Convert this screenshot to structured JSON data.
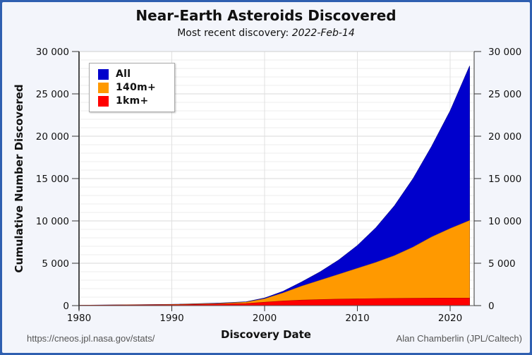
{
  "chart_data": {
    "type": "area",
    "stacked": false,
    "title": "Near-Earth Asteroids Discovered",
    "subtitle_prefix": "Most recent discovery: ",
    "subtitle_date": "2022-Feb-14",
    "xlabel": "Discovery Date",
    "ylabel": "Cumulative Number Discovered",
    "xlim": [
      1980,
      2022.5
    ],
    "ylim": [
      0,
      30000
    ],
    "x_ticks": [
      "1980",
      "1990",
      "2000",
      "2010",
      "2020"
    ],
    "y_ticks": [
      "0",
      "5 000",
      "10 000",
      "15 000",
      "20 000",
      "25 000",
      "30 000"
    ],
    "y_ticks_right": [
      "0",
      "5 000",
      "10 000",
      "15 000",
      "20 000",
      "25 000",
      "30 000"
    ],
    "grid": {
      "major_y": 5000,
      "minor_y": 1000,
      "major_x": 10
    },
    "legend_position": "upper-left",
    "x": [
      1980,
      1990,
      1995,
      1998,
      2000,
      2002,
      2004,
      2006,
      2008,
      2010,
      2012,
      2014,
      2016,
      2018,
      2020,
      2022.1
    ],
    "series": [
      {
        "name": "All",
        "color": "#0000cc",
        "values": [
          50,
          150,
          300,
          450,
          900,
          1700,
          2800,
          4000,
          5400,
          7100,
          9200,
          11800,
          15000,
          18800,
          23000,
          28300
        ]
      },
      {
        "name": "140m+",
        "color": "#ff9900",
        "values": [
          45,
          130,
          250,
          400,
          800,
          1500,
          2300,
          3000,
          3700,
          4400,
          5100,
          5900,
          6900,
          8100,
          9100,
          10050
        ]
      },
      {
        "name": "1km+",
        "color": "#ff0000",
        "values": [
          40,
          100,
          180,
          250,
          400,
          550,
          650,
          720,
          770,
          800,
          830,
          850,
          865,
          880,
          890,
          895
        ]
      }
    ]
  },
  "footer": {
    "source_url": "https://cneos.jpl.nasa.gov/stats/",
    "credit": "Alan Chamberlin (JPL/Caltech)"
  },
  "legend": {
    "items": [
      {
        "label": "All",
        "color": "#0000cc"
      },
      {
        "label": "140m+",
        "color": "#ff9900"
      },
      {
        "label": "1km+",
        "color": "#ff0000"
      }
    ]
  }
}
